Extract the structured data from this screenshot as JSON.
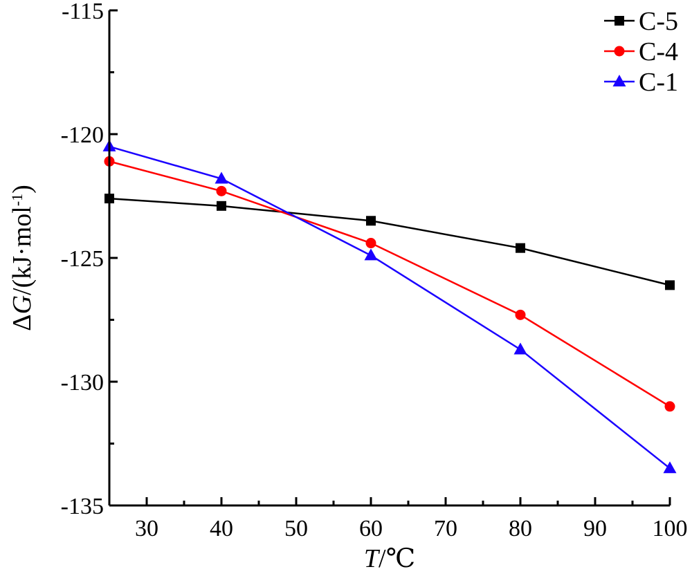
{
  "chart_data": {
    "type": "line",
    "title": "",
    "xlabel": {
      "var": "T",
      "unit": "/℃"
    },
    "ylabel": {
      "prefix": "Δ",
      "var": "G",
      "unit_open": "/(kJ·mol",
      "unit_exp": "-1",
      "unit_close": ")"
    },
    "xlim": [
      25,
      100
    ],
    "ylim": [
      -135,
      -115
    ],
    "x_ticks": [
      30,
      40,
      50,
      60,
      70,
      80,
      90,
      100
    ],
    "x_tick_labels": [
      "30",
      "40",
      "50",
      "60",
      "70",
      "80",
      "90",
      "100"
    ],
    "y_ticks": [
      -115,
      -120,
      -125,
      -130,
      -135
    ],
    "y_tick_labels": [
      "-115",
      "-120",
      "-125",
      "-130",
      "-135"
    ],
    "grid": false,
    "legend_position": "top-right",
    "x": [
      25,
      40,
      60,
      80,
      100
    ],
    "series": [
      {
        "name": "C-5",
        "color": "#000000",
        "marker": "square",
        "values": [
          -122.6,
          -122.9,
          -123.5,
          -124.6,
          -126.1
        ]
      },
      {
        "name": "C-4",
        "color": "#ff0000",
        "marker": "circle",
        "values": [
          -121.1,
          -122.3,
          -124.4,
          -127.3,
          -131.0
        ]
      },
      {
        "name": "C-1",
        "color": "#1a00ff",
        "marker": "triangle",
        "values": [
          -120.5,
          -121.8,
          -124.9,
          -128.7,
          -133.5
        ]
      }
    ]
  }
}
